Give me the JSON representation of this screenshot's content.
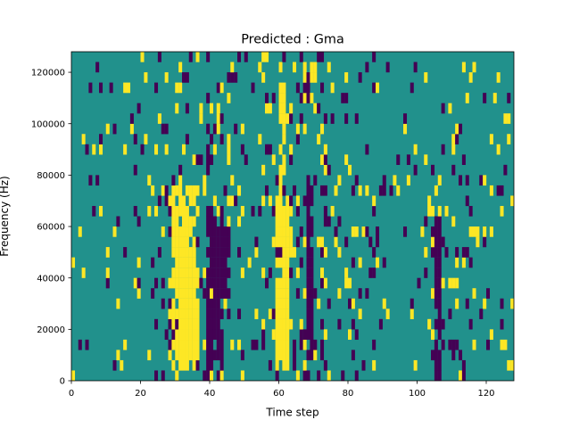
{
  "chart_data": {
    "type": "heatmap",
    "title": "Predicted : Gma",
    "xlabel": "Time step",
    "ylabel": "Frequency (Hz)",
    "xlim": [
      0,
      128
    ],
    "ylim": [
      0,
      128000
    ],
    "x_ticks": [
      0,
      20,
      40,
      60,
      80,
      100,
      120
    ],
    "y_ticks": [
      0,
      20000,
      40000,
      60000,
      80000,
      100000,
      120000
    ],
    "x_tick_labels": [
      "0",
      "20",
      "40",
      "60",
      "80",
      "100",
      "120"
    ],
    "y_tick_labels": [
      "0",
      "20000",
      "40000",
      "60000",
      "80000",
      "100000",
      "120000"
    ],
    "grid": false,
    "legend": "none",
    "n_time_steps": 128,
    "n_freq_bins": 32,
    "colormap": "viridis",
    "background_value": 0,
    "level_colors": {
      "low": "#440154",
      "mid": "#21918c",
      "high": "#fde725"
    },
    "high_value_regions": [
      {
        "t": [
          29,
          35
        ],
        "f": [
          4000,
          74000
        ]
      },
      {
        "t": [
          31,
          36
        ],
        "f": [
          14000,
          44000
        ]
      },
      {
        "t": [
          59,
          62
        ],
        "f": [
          4000,
          70000
        ]
      },
      {
        "t": [
          60,
          61
        ],
        "f": [
          80000,
          116000
        ]
      }
    ],
    "low_value_regions": [
      {
        "t": [
          39,
          43
        ],
        "f": [
          4000,
          68000
        ]
      },
      {
        "t": [
          41,
          45
        ],
        "f": [
          34000,
          58000
        ]
      },
      {
        "t": [
          68,
          69
        ],
        "f": [
          8000,
          76000
        ]
      },
      {
        "t": [
          105,
          106
        ],
        "f": [
          0,
          64000
        ]
      },
      {
        "t": [
          112,
          113
        ],
        "f": [
          4000,
          12000
        ]
      }
    ]
  }
}
